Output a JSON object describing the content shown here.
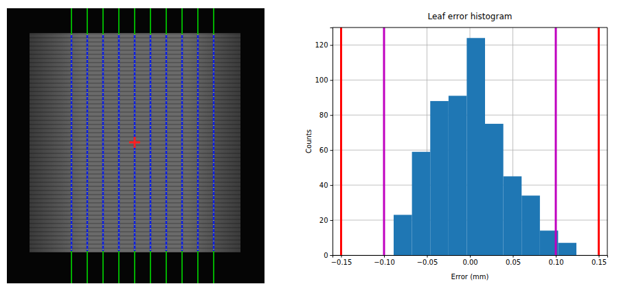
{
  "chart_data": {
    "type": "histogram",
    "title": "Leaf error histogram",
    "x_label": "Error (mm)",
    "y_label": "Counts",
    "bins": [
      -0.0888,
      -0.0675,
      -0.0462,
      -0.0249,
      -0.0037,
      0.0176,
      0.0389,
      0.0602,
      0.0815,
      0.1027,
      0.124
    ],
    "values": [
      23,
      59,
      88,
      91,
      124,
      75,
      45,
      34,
      14,
      7
    ],
    "color": "#1f77b4",
    "vlines": [
      {
        "x": -0.15,
        "color": "#ff0000"
      },
      {
        "x": 0.15,
        "color": "#ff0000"
      },
      {
        "x": -0.1,
        "color": "#bf00bf"
      },
      {
        "x": 0.1,
        "color": "#bf00bf"
      }
    ],
    "xlim": [
      -0.16,
      0.16
    ],
    "xticks": [
      {
        "value": -0.15,
        "label": "−0.15"
      },
      {
        "value": -0.1,
        "label": "−0.10"
      },
      {
        "value": -0.05,
        "label": "−0.05"
      },
      {
        "value": 0,
        "label": "0.00"
      },
      {
        "value": 0.05,
        "label": "0.05"
      },
      {
        "value": 0.1,
        "label": "0.10"
      },
      {
        "value": 0.15,
        "label": "0.15"
      }
    ],
    "ylim": [
      0,
      130
    ],
    "yticks": [
      0,
      20,
      40,
      60,
      80,
      100,
      120
    ],
    "grid": true
  }
}
